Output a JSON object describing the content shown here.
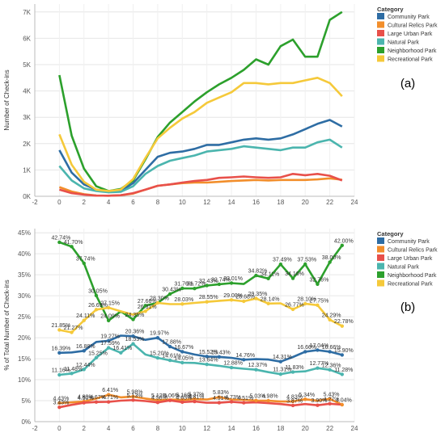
{
  "legend_title": "Category",
  "categories": [
    "Community Park",
    "Cultural Relics Park",
    "Large Urban Park",
    "Natural Park",
    "Neighborhood Park",
    "Recreational Park"
  ],
  "colors": {
    "Community Park": "#2e6da4",
    "Cultural Relics Park": "#f28e2b",
    "Large Urban Park": "#e8504a",
    "Natural Park": "#4bb5ae",
    "Neighborhood Park": "#2ca02c",
    "Recreational Park": "#f5c93a"
  },
  "chart_data": [
    {
      "type": "line",
      "panel_label": "(a)",
      "ylabel": "Number of Check-ins",
      "xlabel": "",
      "xlim": [
        -2,
        24
      ],
      "ylim": [
        0,
        7300
      ],
      "x_ticks": [
        -2,
        0,
        2,
        4,
        6,
        8,
        10,
        12,
        14,
        16,
        18,
        20,
        22,
        24
      ],
      "y_ticks": [
        0,
        1000,
        2000,
        3000,
        4000,
        5000,
        6000,
        7000
      ],
      "y_tick_labels": [
        "0K",
        "1K",
        "2K",
        "3K",
        "4K",
        "5K",
        "6K",
        "7K"
      ],
      "grid": true,
      "x": [
        0,
        1,
        2,
        3,
        4,
        5,
        6,
        7,
        8,
        9,
        10,
        11,
        12,
        13,
        14,
        15,
        16,
        17,
        18,
        19,
        20,
        21,
        22,
        23
      ],
      "series": [
        {
          "name": "Community Park",
          "values": [
            1750,
            900,
            450,
            250,
            170,
            200,
            500,
            1000,
            1500,
            1650,
            1700,
            1800,
            1950,
            1950,
            2050,
            2150,
            2200,
            2150,
            2200,
            2350,
            2550,
            2750,
            2900,
            2650
          ]
        },
        {
          "name": "Cultural Relics Park",
          "values": [
            350,
            180,
            80,
            30,
            20,
            40,
            100,
            250,
            400,
            450,
            500,
            520,
            520,
            550,
            580,
            600,
            620,
            600,
            620,
            620,
            620,
            640,
            680,
            630
          ]
        },
        {
          "name": "Large Urban Park",
          "values": [
            250,
            120,
            60,
            25,
            20,
            40,
            120,
            250,
            400,
            450,
            520,
            580,
            620,
            700,
            720,
            750,
            720,
            700,
            720,
            850,
            800,
            850,
            780,
            600
          ]
        },
        {
          "name": "Natural Park",
          "values": [
            1150,
            600,
            300,
            200,
            150,
            170,
            380,
            850,
            1150,
            1350,
            1450,
            1550,
            1700,
            1750,
            1800,
            1900,
            1850,
            1800,
            1750,
            1850,
            1850,
            2050,
            2150,
            1850
          ]
        },
        {
          "name": "Neighborhood Park",
          "values": [
            4600,
            2300,
            1050,
            380,
            200,
            280,
            600,
            1400,
            2250,
            2800,
            3200,
            3600,
            3950,
            4250,
            4500,
            4800,
            5200,
            5000,
            5700,
            5950,
            5300,
            5300,
            6700,
            7000
          ]
        },
        {
          "name": "Recreational Park",
          "values": [
            2350,
            1200,
            550,
            250,
            200,
            250,
            650,
            1450,
            2200,
            2600,
            2950,
            3200,
            3550,
            3750,
            3950,
            4300,
            4300,
            4250,
            4300,
            4300,
            4400,
            4500,
            4300,
            3800
          ]
        }
      ]
    },
    {
      "type": "line",
      "panel_label": "(b)",
      "ylabel": "% of Total Number of Check-ins",
      "xlabel": "",
      "xlim": [
        -2,
        24
      ],
      "ylim": [
        0,
        46
      ],
      "x_ticks": [
        -2,
        0,
        2,
        4,
        6,
        8,
        10,
        12,
        14,
        16,
        18,
        20,
        22,
        24
      ],
      "y_ticks": [
        0,
        5,
        10,
        15,
        20,
        25,
        30,
        35,
        40,
        45
      ],
      "y_tick_labels": [
        "0%",
        "5%",
        "10%",
        "15%",
        "20%",
        "25%",
        "30%",
        "35%",
        "40%",
        "45%"
      ],
      "grid": true,
      "x": [
        0,
        1,
        2,
        3,
        4,
        5,
        6,
        7,
        8,
        9,
        10,
        11,
        12,
        13,
        14,
        15,
        16,
        17,
        18,
        19,
        20,
        21,
        22,
        23
      ],
      "series": [
        {
          "name": "Community Park",
          "values": [
            16.39,
            16.5,
            16.88,
            19.0,
            19.27,
            20.5,
            20.36,
            19.5,
            19.97,
            17.88,
            16.67,
            16.0,
            15.52,
            15.43,
            15.2,
            14.76,
            14.9,
            14.8,
            14.31,
            15.4,
            16.66,
            17.04,
            16.66,
            15.9
          ],
          "labels": [
            "16.39%",
            "",
            "16.88%",
            "",
            "19.27%",
            "",
            "20.36%",
            "",
            "19.97%",
            "17.88%",
            "16.67%",
            "",
            "15.52%",
            "15.43%",
            "",
            "14.76%",
            "",
            "",
            "14.31%",
            "",
            "16.66%",
            "17.04%",
            "16.66%",
            "15.90%"
          ]
        },
        {
          "name": "Cultural Relics Park",
          "values": [
            4.43,
            4.6,
            4.8,
            5.5,
            6.41,
            5.8,
            5.98,
            5.5,
            5.12,
            5.3,
            5.16,
            5.37,
            5.27,
            5.83,
            5.3,
            5.2,
            5.03,
            4.98,
            4.8,
            4.83,
            5.34,
            5.0,
            5.43,
            4.04
          ],
          "labels": [
            "4.43%",
            "",
            "4.80%",
            "",
            "6.41%",
            "",
            "5.98%",
            "",
            "5.12%",
            "",
            "5.16%",
            "5.37%",
            "",
            "5.83%",
            "",
            "",
            "5.03%",
            "4.98%",
            "",
            "4.83%",
            "5.34%",
            "",
            "5.43%",
            "4.04%"
          ]
        },
        {
          "name": "Large Urban Park",
          "values": [
            3.43,
            4.0,
            4.5,
            4.67,
            4.71,
            5.0,
            5.13,
            4.9,
            4.58,
            5.06,
            4.65,
            4.81,
            4.5,
            4.51,
            4.73,
            4.51,
            4.6,
            4.4,
            4.2,
            3.87,
            4.2,
            3.9,
            4.27,
            4.04
          ],
          "labels": [
            "3.43%",
            "",
            "4.50%",
            "4.67%",
            "4.71%",
            "",
            "5.13%",
            "",
            "4.58%",
            "5.06%",
            "4.65%",
            "4.81%",
            "",
            "4.51%",
            "4.73%",
            "4.51%",
            "",
            "",
            "",
            "3.87%",
            "",
            "3.90%",
            "4.27%",
            ""
          ]
        },
        {
          "name": "Natural Park",
          "values": [
            11.16,
            11.48,
            12.44,
            15.25,
            17.59,
            16.41,
            18.53,
            16.0,
            15.2,
            14.61,
            14.05,
            14.0,
            13.64,
            13.3,
            12.88,
            12.6,
            12.37,
            11.8,
            11.31,
            11.83,
            12.0,
            12.77,
            12.36,
            11.28
          ],
          "labels": [
            "11.16%",
            "11.48%",
            "12.44%",
            "15.25%",
            "17.59%",
            "16.41%",
            "18.53%",
            "",
            "15.20%",
            "14.61%",
            "14.05%",
            "",
            "13.64%",
            "",
            "12.88%",
            "",
            "12.37%",
            "",
            "11.31%",
            "11.83%",
            "",
            "12.77%",
            "12.36%",
            "11.28%"
          ]
        },
        {
          "name": "Neighborhood Park",
          "values": [
            42.74,
            41.7,
            37.74,
            30.05,
            24.09,
            26.3,
            24.35,
            27.66,
            28.3,
            30.43,
            31.76,
            31.72,
            32.43,
            32.74,
            33.01,
            32.8,
            34.82,
            34.11,
            37.49,
            34.16,
            37.53,
            32.76,
            38.0,
            42.0
          ],
          "labels": [
            "42.74%",
            "41.70%",
            "37.74%",
            "30.05%",
            "24.09%",
            "",
            "24.35%",
            "27.66%",
            "",
            "30.43%",
            "31.76%",
            "31.72%",
            "32.43%",
            "32.74%",
            "33.01%",
            "",
            "34.82%",
            "34.11%",
            "37.49%",
            "34.16%",
            "37.53%",
            "32.76%",
            "38.00%",
            "42.00%"
          ]
        },
        {
          "name": "Recreational Park",
          "values": [
            21.85,
            21.27,
            24.11,
            26.69,
            27.15,
            26.3,
            25.5,
            26.31,
            28.3,
            28.0,
            28.03,
            28.3,
            28.55,
            28.8,
            29.0,
            28.68,
            29.35,
            28.14,
            28.2,
            26.77,
            28.1,
            27.75,
            24.29,
            22.78
          ],
          "labels": [
            "21.85%",
            "21.27%",
            "24.11%",
            "26.69%",
            "27.15%",
            "",
            "",
            "26.31%",
            "28.30%",
            "",
            "28.03%",
            "",
            "28.55%",
            "",
            "29.00%",
            "28.68%",
            "29.35%",
            "28.14%",
            "",
            "26.77%",
            "28.10%",
            "27.75%",
            "24.29%",
            "22.78%"
          ]
        }
      ]
    }
  ]
}
